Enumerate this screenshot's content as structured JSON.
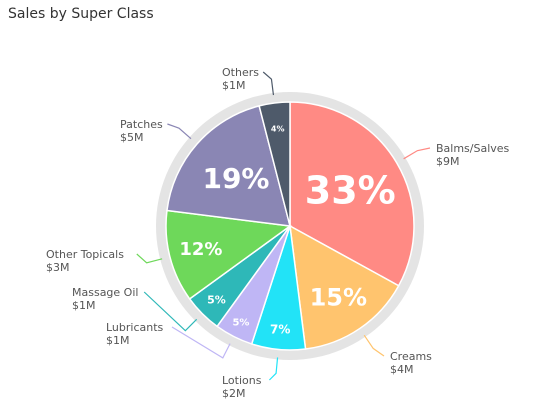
{
  "title": "Sales by Super Class",
  "chart_data": {
    "type": "pie",
    "title": "Sales by Super Class",
    "slices": [
      {
        "name": "Balms/Salves",
        "value_label": "$9M",
        "percent": 33,
        "percent_label": "33%",
        "color": "#FF8A84"
      },
      {
        "name": "Creams",
        "value_label": "$4M",
        "percent": 15,
        "percent_label": "15%",
        "color": "#FFC46E"
      },
      {
        "name": "Lotions",
        "value_label": "$2M",
        "percent": 7,
        "percent_label": "7%",
        "color": "#22E3F7"
      },
      {
        "name": "Lubricants",
        "value_label": "$1M",
        "percent": 5,
        "percent_label": "5%",
        "color": "#BFB6F5"
      },
      {
        "name": "Massage Oil",
        "value_label": "$1M",
        "percent": 5,
        "percent_label": "5%",
        "color": "#2EB8B8"
      },
      {
        "name": "Other Topicals",
        "value_label": "$3M",
        "percent": 12,
        "percent_label": "12%",
        "color": "#6ED85A"
      },
      {
        "name": "Patches",
        "value_label": "$5M",
        "percent": 19,
        "percent_label": "19%",
        "color": "#8A86B4"
      },
      {
        "name": "Others",
        "value_label": "$1M",
        "percent": 4,
        "percent_label": "4%",
        "color": "#4E5A6A"
      }
    ]
  }
}
